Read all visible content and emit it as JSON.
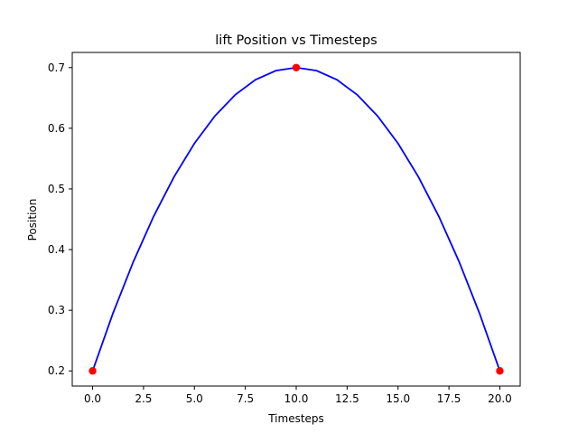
{
  "chart_data": {
    "type": "line",
    "title": "lift Position vs Timesteps",
    "xlabel": "Timesteps",
    "ylabel": "Position",
    "xlim": [
      -1,
      21
    ],
    "ylim": [
      0.175,
      0.725
    ],
    "xticks": [
      0.0,
      2.5,
      5.0,
      7.5,
      10.0,
      12.5,
      15.0,
      17.5,
      20.0
    ],
    "xtick_labels": [
      "0.0",
      "2.5",
      "5.0",
      "7.5",
      "10.0",
      "12.5",
      "15.0",
      "17.5",
      "20.0"
    ],
    "yticks": [
      0.2,
      0.3,
      0.4,
      0.5,
      0.6,
      0.7
    ],
    "ytick_labels": [
      "0.2",
      "0.3",
      "0.4",
      "0.5",
      "0.6",
      "0.7"
    ],
    "grid": false,
    "series": [
      {
        "color": "#0000ff",
        "x": [
          0,
          1,
          2,
          3,
          4,
          5,
          6,
          7,
          8,
          9,
          10,
          11,
          12,
          13,
          14,
          15,
          16,
          17,
          18,
          19,
          20
        ],
        "values": [
          0.2,
          0.295,
          0.38,
          0.455,
          0.52,
          0.575,
          0.62,
          0.655,
          0.68,
          0.695,
          0.7,
          0.695,
          0.68,
          0.655,
          0.62,
          0.575,
          0.52,
          0.455,
          0.38,
          0.295,
          0.2
        ]
      }
    ],
    "points": {
      "color": "#ff0000",
      "x": [
        0,
        10,
        20
      ],
      "values": [
        0.2,
        0.7,
        0.2
      ]
    }
  }
}
